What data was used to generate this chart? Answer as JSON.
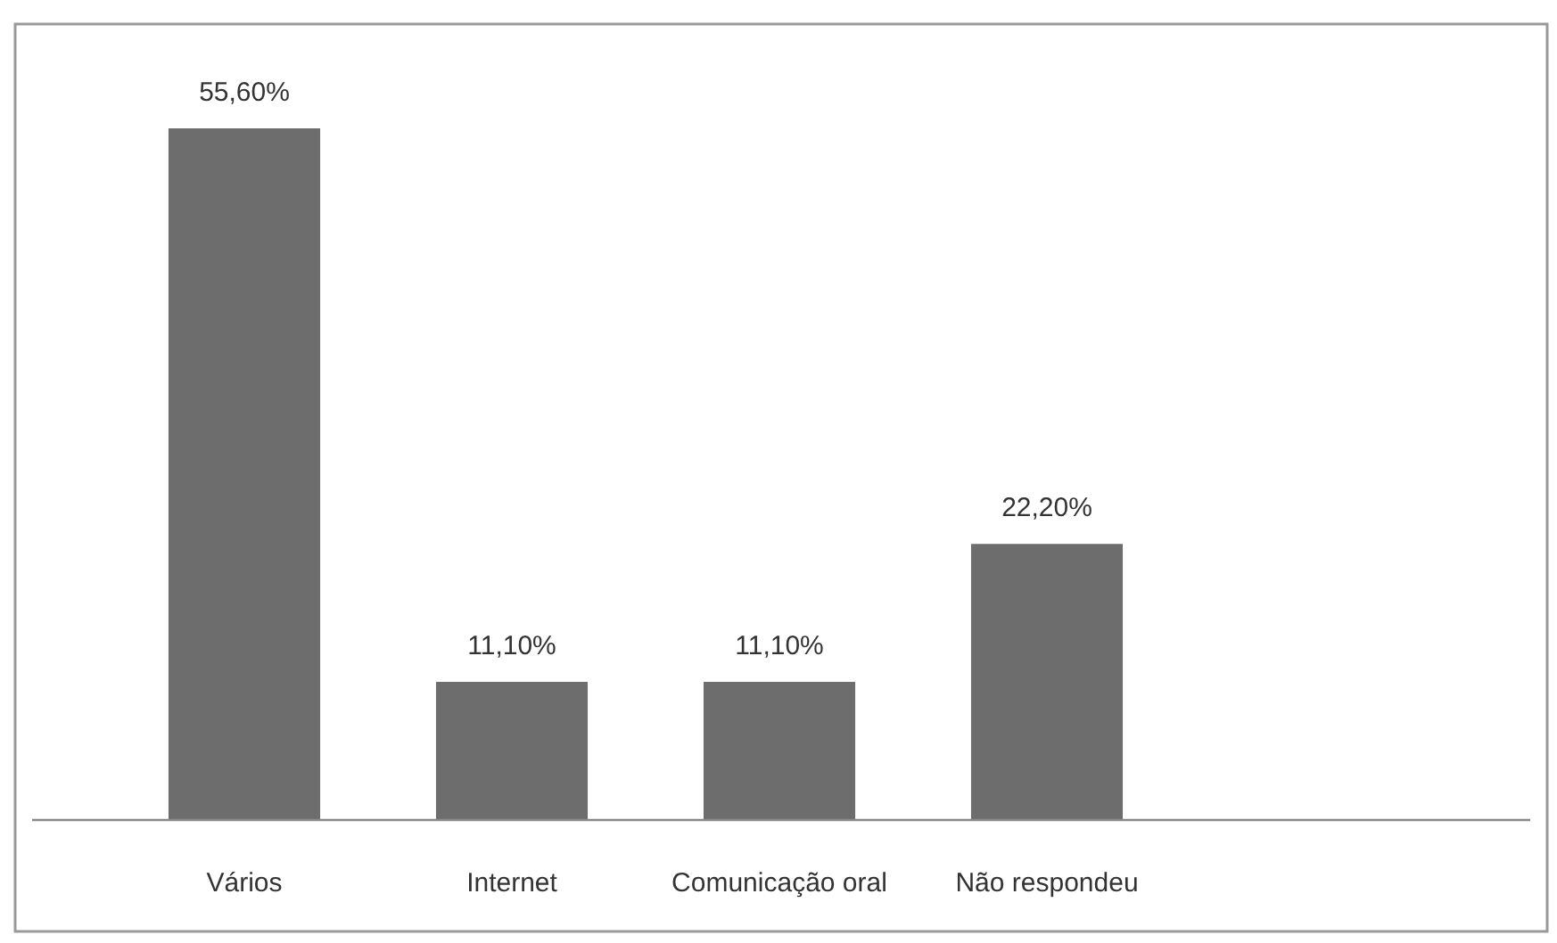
{
  "chart_data": {
    "type": "bar",
    "categories": [
      "Vários",
      "Internet",
      "Comunicação oral",
      "Não respondeu"
    ],
    "values": [
      55.6,
      11.1,
      11.1,
      22.2
    ],
    "color": "#6d6d6d",
    "value_labels": [
      "55,60%",
      "11,10%",
      "11,10%",
      "22,20%"
    ],
    "grid": false,
    "legend": false
  }
}
